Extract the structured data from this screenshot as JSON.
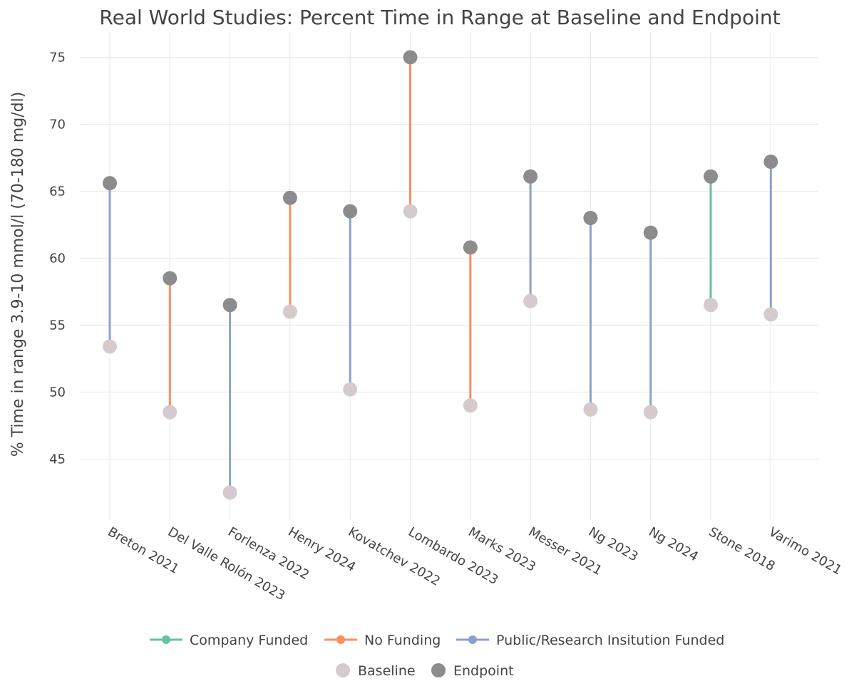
{
  "chart_data": {
    "type": "dumbbell",
    "title": "Real World Studies: Percent Time in Range at Baseline and Endpoint",
    "xlabel": "",
    "ylabel": "% Time in range 3.9-10 mmol/l (70-180 mg/dl)",
    "yticks": [
      45,
      50,
      55,
      60,
      65,
      70,
      75
    ],
    "grid": true,
    "categories": [
      "Breton 2021",
      "Del Valle Rolón 2023",
      "Forlenza 2022",
      "Henry 2024",
      "Kovatchev 2022",
      "Lombardo 2023",
      "Marks 2023",
      "Messer 2021",
      "Ng 2023",
      "Ng 2024",
      "Stone 2018",
      "Varimo 2021"
    ],
    "baseline": [
      53.4,
      48.5,
      42.5,
      56.0,
      50.2,
      63.5,
      49.0,
      56.8,
      48.7,
      48.5,
      56.5,
      55.8
    ],
    "endpoint": [
      65.6,
      58.5,
      56.5,
      64.5,
      63.5,
      75.0,
      60.8,
      66.1,
      63.0,
      61.9,
      66.1,
      67.2
    ],
    "funding": [
      "Public/Research Insitution Funded",
      "No Funding",
      "Public/Research Insitution Funded",
      "No Funding",
      "Public/Research Insitution Funded",
      "No Funding",
      "No Funding",
      "Public/Research Insitution Funded",
      "Public/Research Insitution Funded",
      "Public/Research Insitution Funded",
      "Company Funded",
      "Public/Research Insitution Funded"
    ],
    "legend": {
      "funding_series": [
        {
          "name": "Company Funded",
          "color": "#66c2a5"
        },
        {
          "name": "No Funding",
          "color": "#fc8d62"
        },
        {
          "name": "Public/Research Insitution Funded",
          "color": "#8da0cb"
        }
      ],
      "point_series": [
        {
          "name": "Baseline",
          "color": "#d5cbcc"
        },
        {
          "name": "Endpoint",
          "color": "#8c8c8c"
        }
      ],
      "placement": "bottom-center"
    }
  }
}
